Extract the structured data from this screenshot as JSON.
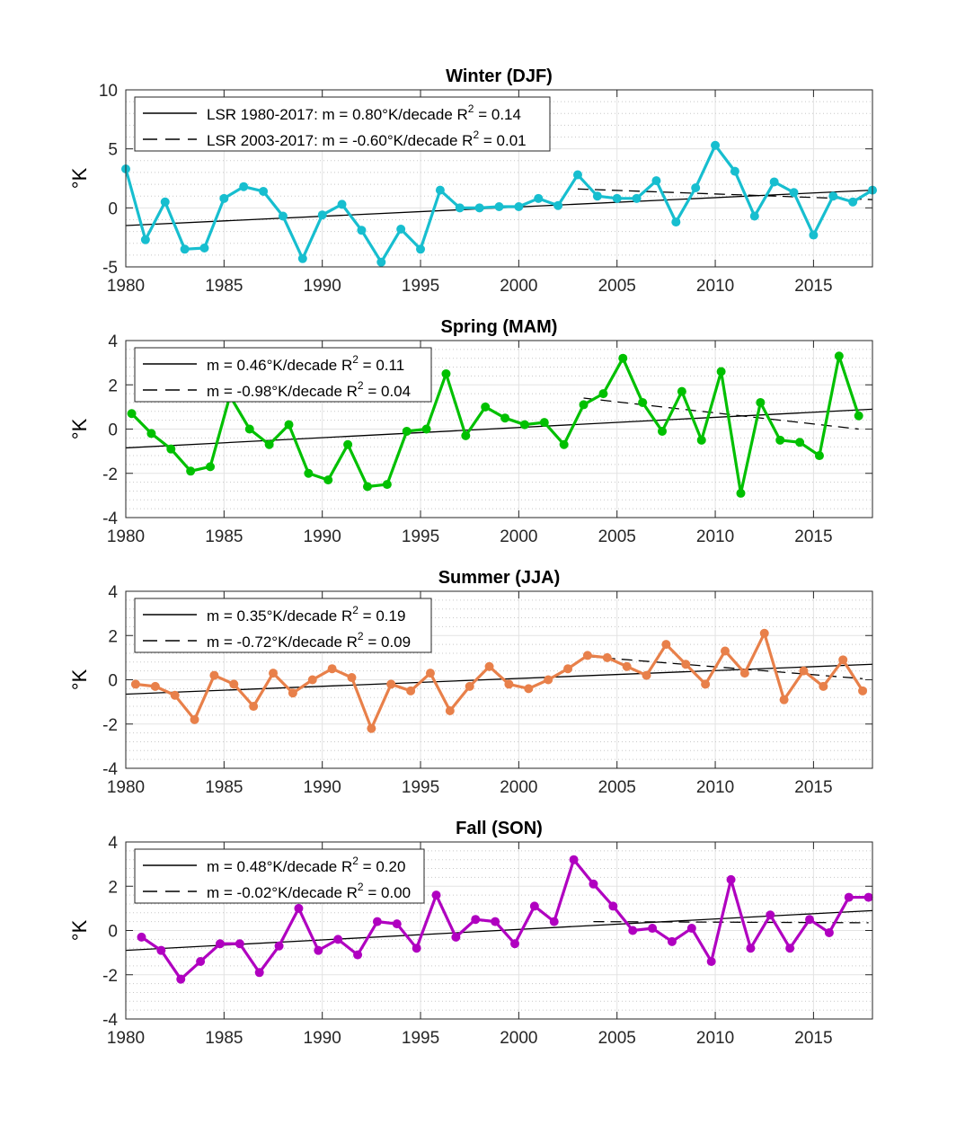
{
  "chart_data": [
    {
      "type": "line",
      "title": "Winter (DJF)",
      "ylabel": "°K",
      "xlim": [
        1980,
        2018
      ],
      "ylim": [
        -5,
        10
      ],
      "xticks": [
        1980,
        1985,
        1990,
        1995,
        2000,
        2005,
        2010,
        2015
      ],
      "xtick_labels": [
        "1980",
        "1985",
        "1990",
        "1995",
        "2000",
        "2005",
        "2010",
        "2015"
      ],
      "yticks": [
        -5,
        0,
        5,
        10
      ],
      "ytick_labels": [
        "-5",
        "0",
        "5",
        "10"
      ],
      "grid": true,
      "legend_position": "top-left",
      "series": [
        {
          "color": "#17BECF",
          "x": [
            1980,
            1981,
            1982,
            1983,
            1984,
            1985,
            1986,
            1987,
            1988,
            1989,
            1990,
            1991,
            1992,
            1993,
            1994,
            1995,
            1996,
            1997,
            1998,
            1999,
            2000,
            2001,
            2002,
            2003,
            2004,
            2005,
            2006,
            2007,
            2008,
            2009,
            2010,
            2011,
            2012,
            2013,
            2014,
            2015,
            2016,
            2017,
            2018
          ],
          "y": [
            3.3,
            -2.7,
            0.5,
            -3.5,
            -3.4,
            0.8,
            1.8,
            1.4,
            -0.7,
            -4.3,
            -0.6,
            0.3,
            -1.9,
            -4.6,
            -1.8,
            -3.5,
            1.5,
            0.0,
            0.0,
            0.1,
            0.1,
            0.8,
            0.2,
            2.8,
            1.0,
            0.8,
            0.8,
            2.3,
            -1.2,
            1.7,
            5.3,
            3.1,
            -0.7,
            2.2,
            1.3,
            -2.3,
            1.0,
            0.5,
            1.5
          ]
        }
      ],
      "trend_lines": [
        {
          "name": "LSR 1980-2017: m = 0.80°K/decade R",
          "sup": "2",
          "suffix": " = 0.14",
          "style": "solid",
          "x": [
            1980,
            2018
          ],
          "y": [
            -1.5,
            1.5
          ]
        },
        {
          "name": "LSR 2003-2017: m = -0.60°K/decade R",
          "sup": "2",
          "suffix": " = 0.01",
          "style": "dashed",
          "x": [
            2003,
            2018
          ],
          "y": [
            1.6,
            0.7
          ]
        }
      ]
    },
    {
      "type": "line",
      "title": "Spring (MAM)",
      "ylabel": "°K",
      "xlim": [
        1980,
        2018
      ],
      "ylim": [
        -4,
        4
      ],
      "xticks": [
        1980,
        1985,
        1990,
        1995,
        2000,
        2005,
        2010,
        2015
      ],
      "xtick_labels": [
        "1980",
        "1985",
        "1990",
        "1995",
        "2000",
        "2005",
        "2010",
        "2015"
      ],
      "yticks": [
        -4,
        -2,
        0,
        2,
        4
      ],
      "ytick_labels": [
        "-4",
        "-2",
        "0",
        "2",
        "4"
      ],
      "grid": true,
      "legend_position": "top-left",
      "series": [
        {
          "color": "#00C000",
          "x": [
            1980.3,
            1981.3,
            1982.3,
            1983.3,
            1984.3,
            1985.3,
            1986.3,
            1987.3,
            1988.3,
            1989.3,
            1990.3,
            1991.3,
            1992.3,
            1993.3,
            1994.3,
            1995.3,
            1996.3,
            1997.3,
            1998.3,
            1999.3,
            2000.3,
            2001.3,
            2002.3,
            2003.3,
            2004.3,
            2005.3,
            2006.3,
            2007.3,
            2008.3,
            2009.3,
            2010.3,
            2011.3,
            2012.3,
            2013.3,
            2014.3,
            2015.3,
            2016.3,
            2017.3
          ],
          "y": [
            0.7,
            -0.2,
            -0.9,
            -1.9,
            -1.7,
            1.5,
            0.0,
            -0.7,
            0.2,
            -2.0,
            -2.3,
            -0.7,
            -2.6,
            -2.5,
            -0.1,
            0.0,
            2.5,
            -0.3,
            1.0,
            0.5,
            0.2,
            0.3,
            -0.7,
            1.1,
            1.6,
            3.2,
            1.2,
            -0.1,
            1.7,
            -0.5,
            2.6,
            -2.9,
            1.2,
            -0.5,
            -0.6,
            -1.2,
            3.3,
            0.6
          ]
        }
      ],
      "trend_lines": [
        {
          "name": "m = 0.46°K/decade R",
          "sup": "2",
          "suffix": " = 0.11",
          "style": "solid",
          "x": [
            1980,
            2018
          ],
          "y": [
            -0.85,
            0.9
          ]
        },
        {
          "name": "m = -0.98°K/decade R",
          "sup": "2",
          "suffix": " = 0.04",
          "style": "dashed",
          "x": [
            2003.3,
            2017.3
          ],
          "y": [
            1.4,
            0.0
          ]
        }
      ]
    },
    {
      "type": "line",
      "title": "Summer (JJA)",
      "ylabel": "°K",
      "xlim": [
        1980,
        2018
      ],
      "ylim": [
        -4,
        4
      ],
      "xticks": [
        1980,
        1985,
        1990,
        1995,
        2000,
        2005,
        2010,
        2015
      ],
      "xtick_labels": [
        "1980",
        "1985",
        "1990",
        "1995",
        "2000",
        "2005",
        "2010",
        "2015"
      ],
      "yticks": [
        -4,
        -2,
        0,
        2,
        4
      ],
      "ytick_labels": [
        "-4",
        "-2",
        "0",
        "2",
        "4"
      ],
      "grid": true,
      "legend_position": "top-left",
      "series": [
        {
          "color": "#E8804A",
          "x": [
            1980.5,
            1981.5,
            1982.5,
            1983.5,
            1984.5,
            1985.5,
            1986.5,
            1987.5,
            1988.5,
            1989.5,
            1990.5,
            1991.5,
            1992.5,
            1993.5,
            1994.5,
            1995.5,
            1996.5,
            1997.5,
            1998.5,
            1999.5,
            2000.5,
            2001.5,
            2002.5,
            2003.5,
            2004.5,
            2005.5,
            2006.5,
            2007.5,
            2008.5,
            2009.5,
            2010.5,
            2011.5,
            2012.5,
            2013.5,
            2014.5,
            2015.5,
            2016.5,
            2017.5
          ],
          "y": [
            -0.2,
            -0.3,
            -0.7,
            -1.8,
            0.2,
            -0.2,
            -1.2,
            0.3,
            -0.6,
            0.0,
            0.5,
            0.1,
            -2.2,
            -0.2,
            -0.5,
            0.3,
            -1.4,
            -0.3,
            0.6,
            -0.2,
            -0.4,
            0.0,
            0.5,
            1.1,
            1.0,
            0.6,
            0.2,
            1.6,
            0.7,
            -0.2,
            1.3,
            0.3,
            2.1,
            -0.9,
            0.4,
            -0.3,
            0.9,
            -0.5
          ]
        }
      ],
      "trend_lines": [
        {
          "name": "m = 0.35°K/decade R",
          "sup": "2",
          "suffix": " = 0.19",
          "style": "solid",
          "x": [
            1980,
            2018
          ],
          "y": [
            -0.65,
            0.7
          ]
        },
        {
          "name": "m = -0.72°K/decade R",
          "sup": "2",
          "suffix": " = 0.09",
          "style": "dashed",
          "x": [
            2003.5,
            2017.5
          ],
          "y": [
            1.05,
            0.05
          ]
        }
      ]
    },
    {
      "type": "line",
      "title": "Fall (SON)",
      "ylabel": "°K",
      "xlim": [
        1980,
        2018
      ],
      "ylim": [
        -4,
        4
      ],
      "xticks": [
        1980,
        1985,
        1990,
        1995,
        2000,
        2005,
        2010,
        2015
      ],
      "xtick_labels": [
        "1980",
        "1985",
        "1990",
        "1995",
        "2000",
        "2005",
        "2010",
        "2015"
      ],
      "yticks": [
        -4,
        -2,
        0,
        2,
        4
      ],
      "ytick_labels": [
        "-4",
        "-2",
        "0",
        "2",
        "4"
      ],
      "grid": true,
      "legend_position": "top-left",
      "series": [
        {
          "color": "#B000C0",
          "x": [
            1980.8,
            1981.8,
            1982.8,
            1983.8,
            1984.8,
            1985.8,
            1986.8,
            1987.8,
            1988.8,
            1989.8,
            1990.8,
            1991.8,
            1992.8,
            1993.8,
            1994.8,
            1995.8,
            1996.8,
            1997.8,
            1998.8,
            1999.8,
            2000.8,
            2001.8,
            2002.8,
            2003.8,
            2004.8,
            2005.8,
            2006.8,
            2007.8,
            2008.8,
            2009.8,
            2010.8,
            2011.8,
            2012.8,
            2013.8,
            2014.8,
            2015.8,
            2016.8,
            2017.8
          ],
          "y": [
            -0.3,
            -0.9,
            -2.2,
            -1.4,
            -0.6,
            -0.6,
            -1.9,
            -0.7,
            1.0,
            -0.9,
            -0.4,
            -1.1,
            0.4,
            0.3,
            -0.8,
            1.6,
            -0.3,
            0.5,
            0.4,
            -0.6,
            1.1,
            0.4,
            3.2,
            2.1,
            1.1,
            0.0,
            0.1,
            -0.5,
            0.1,
            -1.4,
            2.3,
            -0.8,
            0.7,
            -0.8,
            0.5,
            -0.1,
            1.5,
            1.5
          ]
        }
      ],
      "trend_lines": [
        {
          "name": "m = 0.48°K/decade R",
          "sup": "2",
          "suffix": " = 0.20",
          "style": "solid",
          "x": [
            1980,
            2018
          ],
          "y": [
            -0.9,
            0.9
          ]
        },
        {
          "name": "m = -0.02°K/decade R",
          "sup": "2",
          "suffix": " = 0.00",
          "style": "dashed",
          "x": [
            2003.8,
            2017.8
          ],
          "y": [
            0.4,
            0.35
          ]
        }
      ]
    }
  ]
}
